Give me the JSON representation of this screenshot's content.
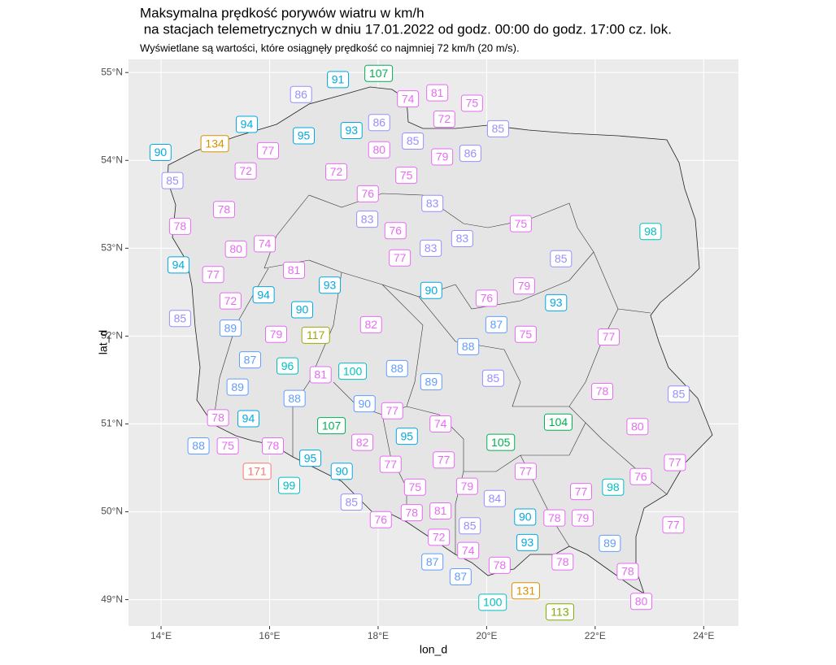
{
  "chart_data": {
    "type": "label_map",
    "title": [
      "Maksymalna prędkość porywów wiatru w km/h",
      " na stacjach telemetrycznych w dniu 17.01.2022 od godz. 00:00 do godz. 17:00 cz. lok."
    ],
    "subtitle": "Wyświetlane są wartości, które osiągnęły prędkość co najmniej 72 km/h (20 m/s).",
    "x_label": "lon_d",
    "y_label": "lat_d",
    "xlim": [
      13.4,
      24.64
    ],
    "ylim": [
      48.7,
      55.15
    ],
    "xticks": [
      {
        "value": 14,
        "label": "14°E"
      },
      {
        "value": 16,
        "label": "16°E"
      },
      {
        "value": 18,
        "label": "18°E"
      },
      {
        "value": 20,
        "label": "20°E"
      },
      {
        "value": 22,
        "label": "22°E"
      },
      {
        "value": 24,
        "label": "24°E"
      }
    ],
    "yticks": [
      {
        "value": 49,
        "label": "49°N"
      },
      {
        "value": 50,
        "label": "50°N"
      },
      {
        "value": 51,
        "label": "51°N"
      },
      {
        "value": 52,
        "label": "52°N"
      },
      {
        "value": 53,
        "label": "53°N"
      },
      {
        "value": 54,
        "label": "54°N"
      },
      {
        "value": 55,
        "label": "55°N"
      }
    ],
    "grid": true,
    "series": [
      {
        "color": "#E76BF3",
        "lon": [
          18.55,
          19.09,
          19.73,
          19.22,
          15.97,
          18.02,
          19.18,
          15.56,
          17.23,
          18.52,
          17.81,
          15.16,
          14.35,
          20.63,
          18.32,
          15.38,
          15.91,
          18.4,
          16.45,
          14.96,
          20.69,
          20.0,
          15.28,
          17.87,
          16.12,
          20.72,
          22.25,
          16.94,
          22.13,
          18.26,
          15.05,
          19.15,
          22.78,
          15.23,
          16.06,
          17.71,
          19.21,
          23.47,
          18.23,
          20.72,
          22.84,
          18.68,
          19.64,
          21.74,
          19.15,
          18.62,
          18.05,
          21.25,
          21.77,
          23.44,
          19.12,
          19.66,
          20.24,
          21.4,
          22.6,
          22.85
        ],
        "lat": [
          54.7,
          54.77,
          54.65,
          54.47,
          54.11,
          54.12,
          54.04,
          53.88,
          53.87,
          53.83,
          53.62,
          53.44,
          53.25,
          53.28,
          53.2,
          52.99,
          53.05,
          52.89,
          52.75,
          52.7,
          52.57,
          52.43,
          52.4,
          52.13,
          52.02,
          52.02,
          51.99,
          51.56,
          51.37,
          51.15,
          51.07,
          51.0,
          50.97,
          50.75,
          50.75,
          50.79,
          50.59,
          50.56,
          50.54,
          50.46,
          50.4,
          50.28,
          50.29,
          50.23,
          50.01,
          49.99,
          49.91,
          49.93,
          49.93,
          49.85,
          49.71,
          49.56,
          49.39,
          49.43,
          49.32,
          48.98
        ],
        "values": [
          74,
          81,
          75,
          72,
          77,
          80,
          79,
          72,
          72,
          75,
          76,
          78,
          78,
          75,
          76,
          80,
          74,
          77,
          81,
          77,
          79,
          76,
          72,
          82,
          79,
          75,
          77,
          81,
          78,
          77,
          78,
          74,
          80,
          75,
          78,
          82,
          77,
          77,
          77,
          77,
          76,
          75,
          79,
          77,
          81,
          78,
          76,
          78,
          79,
          77,
          72,
          74,
          78,
          78,
          78,
          80
        ]
      },
      {
        "color": "#9590FF",
        "lon": [
          16.58,
          18.02,
          20.21,
          18.64,
          19.7,
          14.21,
          19.0,
          17.8,
          19.55,
          18.97,
          21.37,
          14.35,
          20.12,
          23.54,
          20.15,
          17.51,
          19.69
        ],
        "lat": [
          54.75,
          54.43,
          54.36,
          54.22,
          54.08,
          53.77,
          53.51,
          53.33,
          53.11,
          53.0,
          52.88,
          52.2,
          51.52,
          51.34,
          50.15,
          50.11,
          49.84
        ],
        "values": [
          86,
          86,
          85,
          85,
          86,
          85,
          83,
          83,
          83,
          83,
          85,
          85,
          85,
          85,
          84,
          85,
          85
        ]
      },
      {
        "color": "#619CFF",
        "lon": [
          15.28,
          20.18,
          19.66,
          15.64,
          18.35,
          18.98,
          15.41,
          16.46,
          17.75,
          14.69,
          22.27,
          19.0,
          19.52
        ],
        "lat": [
          52.09,
          52.13,
          51.88,
          51.73,
          51.63,
          51.48,
          51.42,
          51.29,
          51.23,
          50.75,
          49.64,
          49.43,
          49.26
        ],
        "values": [
          89,
          87,
          88,
          87,
          88,
          89,
          89,
          88,
          90,
          88,
          89,
          87,
          87
        ]
      },
      {
        "color": "#00A9E0",
        "lon": [
          17.26,
          15.58,
          17.51,
          16.63,
          13.99,
          14.32,
          17.11,
          18.98,
          15.89,
          21.28,
          16.6,
          15.61,
          18.53,
          16.75,
          17.33,
          20.71,
          20.75
        ],
        "lat": [
          54.92,
          54.41,
          54.34,
          54.28,
          54.09,
          52.81,
          52.58,
          52.52,
          52.47,
          52.38,
          52.3,
          51.06,
          50.86,
          50.61,
          50.46,
          49.94,
          49.65
        ],
        "values": [
          91,
          94,
          93,
          95,
          90,
          94,
          93,
          90,
          94,
          93,
          90,
          94,
          95,
          95,
          90,
          90,
          93
        ]
      },
      {
        "color": "#00BFC4",
        "lon": [
          23.02,
          16.33,
          17.53,
          16.36,
          22.33,
          20.11
        ],
        "lat": [
          53.19,
          51.66,
          51.6,
          50.3,
          50.28,
          48.97
        ],
        "values": [
          98,
          96,
          100,
          99,
          98,
          100
        ]
      },
      {
        "color": "#00B050",
        "lon": [
          18.01,
          21.32,
          17.14,
          20.26
        ],
        "lat": [
          54.99,
          51.02,
          50.98,
          50.79
        ],
        "values": [
          107,
          104,
          107,
          105
        ]
      },
      {
        "color": "#7CAE00",
        "lon": [
          21.35
        ],
        "lat": [
          48.86
        ],
        "values": [
          113
        ]
      },
      {
        "color": "#A3A500",
        "lon": [
          16.85
        ],
        "lat": [
          52.01
        ],
        "values": [
          117
        ]
      },
      {
        "color": "#D89000",
        "lon": [
          14.99,
          20.72
        ],
        "lat": [
          54.19,
          49.1
        ],
        "values": [
          134,
          131
        ]
      },
      {
        "color": "#F8766D",
        "lon": [
          15.77
        ],
        "lat": [
          50.46
        ],
        "values": [
          171
        ]
      }
    ]
  }
}
